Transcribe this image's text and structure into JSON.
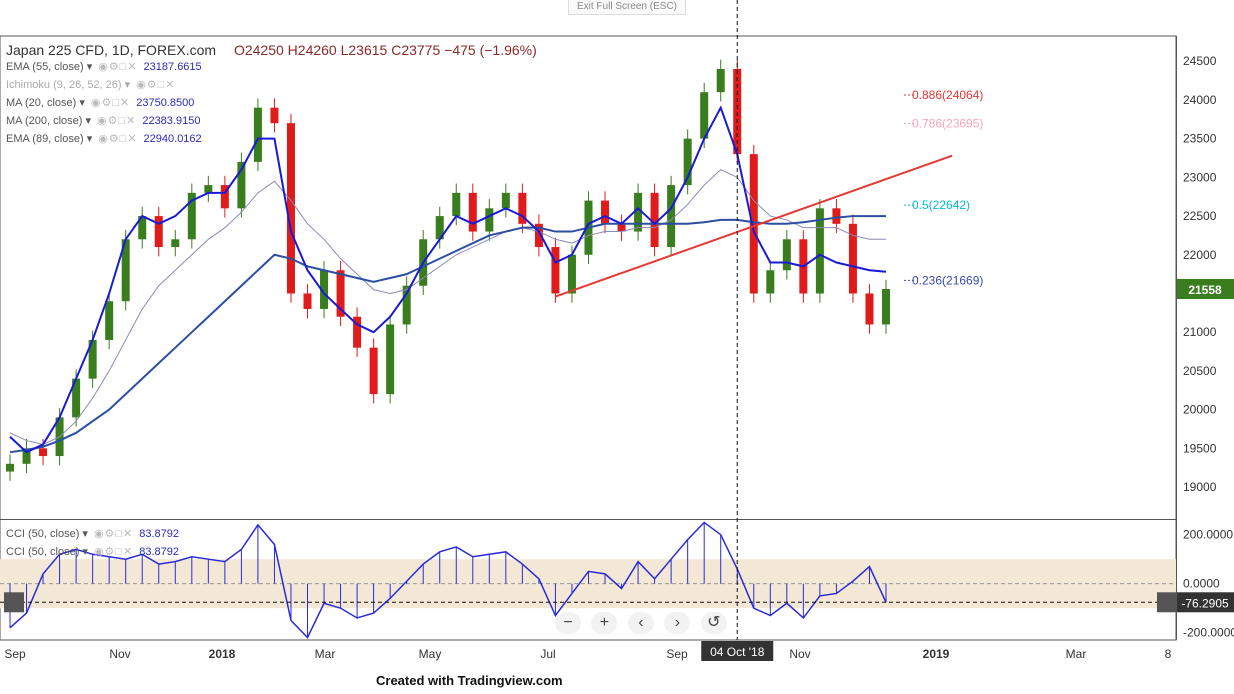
{
  "toolbar": {
    "exit_fullscreen": "Exit Full Screen (ESC)"
  },
  "legend": {
    "symbol": "Japan 225 CFD, 1D, FOREX.com",
    "ohlc": "O24250 H24260 L23615 C23775 −475 (−1.96%)",
    "indicators": [
      {
        "label": "EMA (55, close)",
        "value": "23187.6615",
        "faded": false
      },
      {
        "label": "Ichimoku (9, 26, 52, 26)",
        "value": "",
        "faded": true
      },
      {
        "label": "MA (20, close)",
        "value": "23750.8500",
        "faded": false
      },
      {
        "label": "MA (200, close)",
        "value": "22383.9150",
        "faded": false
      },
      {
        "label": "EMA (89, close)",
        "value": "22940.0162",
        "faded": false
      }
    ]
  },
  "cci_legend": [
    {
      "label": "CCI (50, close)",
      "value": "83.8792"
    },
    {
      "label": "CCI (50, close)",
      "value": "83.8792"
    }
  ],
  "fib_labels": [
    {
      "label": "0.886(24064)",
      "value": 24064,
      "color": "#e53935"
    },
    {
      "label": "0.786(23695)",
      "value": 23695,
      "color": "#f8a5b5"
    },
    {
      "label": "0.5(22642)",
      "value": 22642,
      "color": "#00bcd4"
    },
    {
      "label": "0.236(21669)",
      "value": 21669,
      "color": "#3949ab"
    }
  ],
  "price_badge": "21558",
  "cci_badge": "-76.2905",
  "crosshair_date": "04 Oct '18",
  "credit": "Created with Tradingview.com",
  "colors": {
    "up": "#3a7d1f",
    "down": "#e01b1b",
    "ma": "#1a1ad6",
    "cci": "#2a2ad8",
    "trend": "#e53935",
    "cci_band": "#f3e8d6"
  },
  "chart_data": {
    "type": "line",
    "main": {
      "ylim": [
        18600,
        24800
      ],
      "yticks": [
        19000,
        19500,
        20000,
        20500,
        21000,
        21500,
        22000,
        22500,
        23000,
        23500,
        24000,
        24500
      ],
      "xticks": [
        "Sep",
        "Nov",
        "2018",
        "Mar",
        "May",
        "Jul",
        "Sep",
        "Nov",
        "2019",
        "Mar",
        "8"
      ],
      "price_series": [
        19300,
        19500,
        19400,
        19900,
        20400,
        20900,
        21400,
        22200,
        22500,
        22100,
        22200,
        22800,
        22900,
        22600,
        23200,
        23900,
        23700,
        21500,
        21300,
        21800,
        21200,
        20800,
        20200,
        21100,
        21600,
        22200,
        22500,
        22800,
        22300,
        22600,
        22800,
        22400,
        22100,
        21500,
        22000,
        22700,
        22400,
        22300,
        22800,
        22100,
        22900,
        23500,
        24100,
        24400,
        23300,
        21500,
        21800,
        22200,
        21500,
        22600,
        22400,
        21500,
        21100,
        21558
      ],
      "ema55": [
        19700,
        19600,
        19550,
        19650,
        19850,
        20150,
        20500,
        20900,
        21300,
        21600,
        21800,
        22000,
        22200,
        22350,
        22550,
        22800,
        22950,
        22700,
        22400,
        22200,
        21950,
        21750,
        21550,
        21500,
        21550,
        21700,
        21850,
        22000,
        22100,
        22200,
        22300,
        22350,
        22300,
        22200,
        22150,
        22250,
        22300,
        22300,
        22350,
        22350,
        22450,
        22650,
        22900,
        23100,
        23000,
        22700,
        22500,
        22450,
        22350,
        22350,
        22350,
        22250,
        22200,
        22200
      ],
      "ma20": [
        19650,
        19450,
        19550,
        19900,
        20400,
        20900,
        21500,
        22200,
        22500,
        22400,
        22500,
        22700,
        22800,
        22800,
        23100,
        23500,
        23500,
        22300,
        21800,
        21500,
        21300,
        21100,
        21000,
        21200,
        21500,
        21900,
        22200,
        22500,
        22400,
        22500,
        22600,
        22500,
        22300,
        21900,
        22000,
        22400,
        22500,
        22400,
        22600,
        22400,
        22600,
        23000,
        23500,
        23900,
        23300,
        22300,
        21900,
        21900,
        21850,
        22000,
        21900,
        21850,
        21800,
        21780
      ],
      "ma200": [
        19450,
        19480,
        19520,
        19600,
        19700,
        19850,
        20000,
        20200,
        20400,
        20600,
        20800,
        21000,
        21200,
        21400,
        21600,
        21800,
        22000,
        21950,
        21850,
        21800,
        21750,
        21700,
        21650,
        21700,
        21750,
        21850,
        21950,
        22050,
        22150,
        22250,
        22300,
        22350,
        22350,
        22300,
        22300,
        22350,
        22400,
        22400,
        22400,
        22400,
        22400,
        22400,
        22420,
        22450,
        22450,
        22420,
        22400,
        22400,
        22420,
        22450,
        22480,
        22500,
        22500,
        22500
      ],
      "trendline": {
        "start_index": 33,
        "start_value": 21460,
        "end_index": 57,
        "end_value": 23280
      }
    },
    "cci": {
      "ylim": [
        -230,
        260
      ],
      "yticks": [
        200,
        0,
        -200
      ],
      "series": [
        -180,
        -120,
        40,
        120,
        140,
        120,
        110,
        100,
        120,
        80,
        90,
        110,
        100,
        90,
        140,
        240,
        160,
        -150,
        -220,
        -80,
        -100,
        -140,
        -120,
        -60,
        10,
        80,
        130,
        150,
        110,
        120,
        130,
        80,
        20,
        -130,
        -40,
        50,
        40,
        -20,
        90,
        20,
        100,
        180,
        250,
        200,
        60,
        -100,
        -130,
        -80,
        -140,
        -50,
        -40,
        10,
        70,
        -76
      ]
    },
    "crosshair_index": 44
  }
}
